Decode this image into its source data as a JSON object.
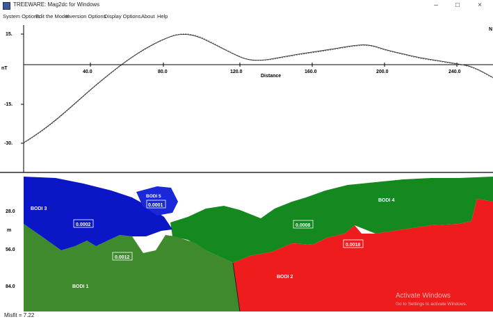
{
  "window": {
    "title": "TREEWARE: Mag2dc for Windows",
    "minimize_glyph": "–",
    "maximize_glyph": "□",
    "close_glyph": "×"
  },
  "menu": [
    "System Options",
    "Edit the Model",
    "Inversion Options",
    "Display Options",
    "About",
    "Help"
  ],
  "profile": {
    "ylabel": "nT",
    "xlabel": "Distance",
    "north_marker": "N",
    "y_ticks": [
      "15.",
      "-15.",
      "-30."
    ],
    "x_ticks": [
      "40.0",
      "80.0",
      "120.0",
      "160.0",
      "200.0",
      "240.0"
    ]
  },
  "chart_data": {
    "type": "line",
    "xlabel": "Distance",
    "ylabel": "nT",
    "xlim": [
      0,
      272
    ],
    "ylim": [
      -39,
      16
    ],
    "series": [
      {
        "style": "observed-dotted",
        "x": [
          0,
          10,
          20,
          30,
          40,
          50,
          60,
          70,
          80,
          90,
          100,
          110,
          120,
          130,
          140,
          150,
          160,
          170,
          180,
          190,
          200,
          210,
          220,
          230,
          240,
          250,
          260,
          272
        ],
        "y": [
          -38.5,
          -33,
          -26.5,
          -19,
          -11.5,
          -4.5,
          2,
          7.5,
          12,
          15.4,
          14.6,
          10.5,
          6,
          2.2,
          2,
          3.5,
          5,
          6.2,
          7.5,
          9,
          9.8,
          7,
          5,
          3,
          1.8,
          0.4,
          -1,
          -6.5
        ]
      },
      {
        "style": "calculated-solid",
        "x": [
          0,
          10,
          20,
          30,
          40,
          50,
          60,
          70,
          80,
          90,
          100,
          110,
          120,
          130,
          140,
          150,
          160,
          170,
          180,
          190,
          200,
          210,
          220,
          230,
          240,
          250,
          260,
          272
        ],
        "y": [
          -38.3,
          -32.8,
          -26.2,
          -18.8,
          -11.3,
          -4.3,
          2.2,
          7.7,
          12.2,
          15.2,
          14.3,
          10.2,
          5.8,
          2.1,
          2.2,
          3.8,
          5.3,
          6.5,
          7.8,
          9.3,
          10,
          7.2,
          5.3,
          3.3,
          2,
          0.6,
          -0.8,
          -6.3
        ]
      }
    ]
  },
  "model": {
    "depth_unit": "m",
    "depth_ticks": [
      "28.0",
      "56.0",
      "84.0"
    ],
    "bodies": [
      {
        "name": "BODI 1",
        "susceptibility": "0.0012",
        "color": "#3f8a2c"
      },
      {
        "name": "BODI 2",
        "susceptibility": "0.0018",
        "color": "#ee1c1c"
      },
      {
        "name": "BODI 3",
        "susceptibility": "0.0002",
        "color": "#0b17c6"
      },
      {
        "name": "BODI 4",
        "susceptibility": "0.0008",
        "color": "#14891f"
      },
      {
        "name": "BODI 5",
        "susceptibility": "0.0001",
        "color": "#1b28d8"
      }
    ]
  },
  "status": {
    "text": "Misfit = 7.22"
  },
  "watermark": {
    "line1": "Activate Windows",
    "line2": "Go to Settings to activate Windows."
  }
}
